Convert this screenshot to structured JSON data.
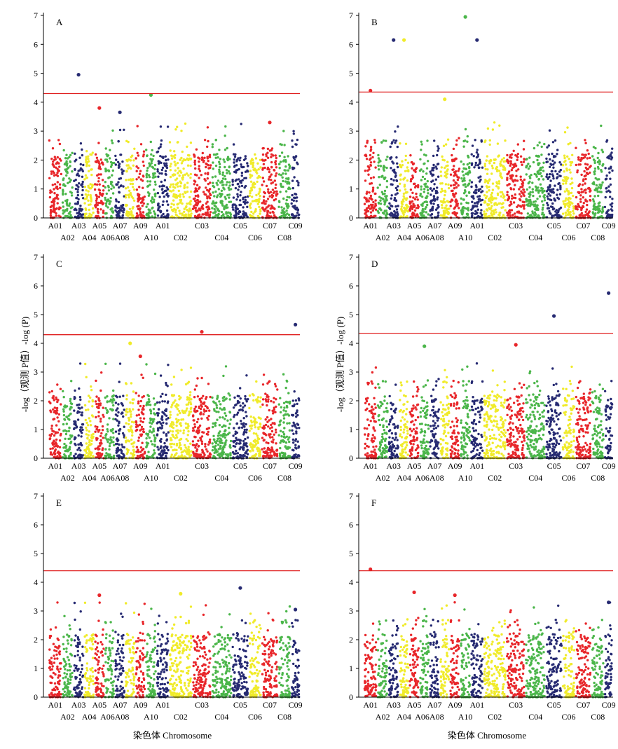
{
  "figure": {
    "y_axis_label": "-log（观测 P值）-log (P)",
    "x_axis_label": "染色体 Chromosome",
    "palette": [
      "#e8262a",
      "#4bb64a",
      "#262a72",
      "#f0eb2a"
    ]
  },
  "chart_data": [
    {
      "type": "scatter",
      "panel": "A",
      "ylim": [
        0,
        7
      ],
      "yticks": [
        0,
        1,
        2,
        3,
        4,
        5,
        6,
        7
      ],
      "threshold": 4.3,
      "chromosomes": [
        "A01",
        "A02",
        "A03",
        "A04",
        "A05",
        "A06",
        "A07",
        "A08",
        "A09",
        "A10",
        "A01",
        "C02",
        "C03",
        "C04",
        "C05",
        "C06",
        "C07",
        "C08",
        "C09"
      ],
      "top_labels": [
        "A01",
        "A03",
        "A05",
        "A07",
        "A09",
        "A01",
        "C03",
        "C05",
        "C07",
        "C09"
      ],
      "bottom_labels": [
        "A02",
        "A04",
        "A06A08",
        "A10",
        "C02",
        "C04",
        "C06",
        "C08"
      ],
      "peaks": [
        {
          "chromosome": "A03",
          "value": 4.95
        },
        {
          "chromosome": "A10",
          "value": 4.25
        },
        {
          "chromosome": "A05",
          "value": 3.8
        },
        {
          "chromosome": "A07",
          "value": 3.65
        },
        {
          "chromosome": "C07",
          "value": 3.3
        }
      ]
    },
    {
      "type": "scatter",
      "panel": "B",
      "ylim": [
        0,
        7
      ],
      "yticks": [
        0,
        1,
        2,
        3,
        4,
        5,
        6,
        7
      ],
      "threshold": 4.35,
      "chromosomes": [
        "A01",
        "A02",
        "A03",
        "A04",
        "A05",
        "A06",
        "A07",
        "A08",
        "A09",
        "A10",
        "A01",
        "C02",
        "C03",
        "C04",
        "C05",
        "C06",
        "C07",
        "C08",
        "C09"
      ],
      "top_labels": [
        "A01",
        "A03",
        "A05",
        "A07",
        "A09",
        "A01",
        "C03",
        "C05",
        "C07",
        "C09"
      ],
      "bottom_labels": [
        "A02",
        "A04",
        "A06A08",
        "A10",
        "C02",
        "C04",
        "C06",
        "C08"
      ],
      "peaks": [
        {
          "chromosome": "A10",
          "value": 6.95
        },
        {
          "chromosome": "A03",
          "value": 6.15
        },
        {
          "chromosome": "A04",
          "value": 6.15
        },
        {
          "chromosome": "A01",
          "value": 6.15
        },
        {
          "chromosome": "A01",
          "value": 4.4
        },
        {
          "chromosome": "A08",
          "value": 4.1
        }
      ]
    },
    {
      "type": "scatter",
      "panel": "C",
      "ylim": [
        0,
        7
      ],
      "yticks": [
        0,
        1,
        2,
        3,
        4,
        5,
        6,
        7
      ],
      "threshold": 4.3,
      "chromosomes": [
        "A01",
        "A02",
        "A03",
        "A04",
        "A05",
        "A06",
        "A07",
        "A08",
        "A09",
        "A10",
        "A01",
        "C02",
        "C03",
        "C04",
        "C05",
        "C06",
        "C07",
        "C08",
        "C09"
      ],
      "top_labels": [
        "A01",
        "A03",
        "A05",
        "A07",
        "A09",
        "A01",
        "C03",
        "C05",
        "C07",
        "C09"
      ],
      "bottom_labels": [
        "A02",
        "A04",
        "A06A08",
        "A10",
        "C02",
        "C04",
        "C06",
        "C08"
      ],
      "peaks": [
        {
          "chromosome": "C09",
          "value": 4.65
        },
        {
          "chromosome": "C03",
          "value": 4.4
        },
        {
          "chromosome": "A08",
          "value": 4.0
        },
        {
          "chromosome": "A09",
          "value": 3.55
        }
      ]
    },
    {
      "type": "scatter",
      "panel": "D",
      "ylim": [
        0,
        7
      ],
      "yticks": [
        0,
        1,
        2,
        3,
        4,
        5,
        6,
        7
      ],
      "threshold": 4.35,
      "chromosomes": [
        "A01",
        "A02",
        "A03",
        "A04",
        "A05",
        "A06",
        "A07",
        "A08",
        "A09",
        "A10",
        "A01",
        "C02",
        "C03",
        "C04",
        "C05",
        "C06",
        "C07",
        "C08",
        "C09"
      ],
      "top_labels": [
        "A01",
        "A03",
        "A05",
        "A07",
        "A09",
        "A01",
        "C03",
        "C05",
        "C07",
        "C09"
      ],
      "bottom_labels": [
        "A02",
        "A04",
        "A06A08",
        "A10",
        "C02",
        "C04",
        "C06",
        "C08"
      ],
      "peaks": [
        {
          "chromosome": "C09",
          "value": 5.75
        },
        {
          "chromosome": "C05",
          "value": 4.95
        },
        {
          "chromosome": "C03",
          "value": 3.95
        },
        {
          "chromosome": "A06",
          "value": 3.9
        }
      ]
    },
    {
      "type": "scatter",
      "panel": "E",
      "ylim": [
        0,
        7
      ],
      "yticks": [
        0,
        1,
        2,
        3,
        4,
        5,
        6,
        7
      ],
      "threshold": 4.4,
      "chromosomes": [
        "A01",
        "A02",
        "A03",
        "A04",
        "A05",
        "A06",
        "A07",
        "A08",
        "A09",
        "A10",
        "A01",
        "C02",
        "C03",
        "C04",
        "C05",
        "C06",
        "C07",
        "C08",
        "C09"
      ],
      "top_labels": [
        "A01",
        "A03",
        "A05",
        "A07",
        "A09",
        "A01",
        "C03",
        "C05",
        "C07",
        "C09"
      ],
      "bottom_labels": [
        "A02",
        "A04",
        "A06A08",
        "A10",
        "C02",
        "C04",
        "C06",
        "C08"
      ],
      "peaks": [
        {
          "chromosome": "C05",
          "value": 3.8
        },
        {
          "chromosome": "C02",
          "value": 3.6
        },
        {
          "chromosome": "A05",
          "value": 3.55
        },
        {
          "chromosome": "C09",
          "value": 3.05
        }
      ]
    },
    {
      "type": "scatter",
      "panel": "F",
      "ylim": [
        0,
        7
      ],
      "yticks": [
        0,
        1,
        2,
        3,
        4,
        5,
        6,
        7
      ],
      "threshold": 4.4,
      "chromosomes": [
        "A01",
        "A02",
        "A03",
        "A04",
        "A05",
        "A06",
        "A07",
        "A08",
        "A09",
        "A10",
        "A01",
        "C02",
        "C03",
        "C04",
        "C05",
        "C06",
        "C07",
        "C08",
        "C09"
      ],
      "top_labels": [
        "A01",
        "A03",
        "A05",
        "A07",
        "A09",
        "A01",
        "C03",
        "C05",
        "C07",
        "C09"
      ],
      "bottom_labels": [
        "A02",
        "A04",
        "A06A08",
        "A10",
        "C02",
        "C04",
        "C06",
        "C08"
      ],
      "peaks": [
        {
          "chromosome": "A01",
          "value": 4.45
        },
        {
          "chromosome": "A05",
          "value": 3.65
        },
        {
          "chromosome": "A09",
          "value": 3.55
        },
        {
          "chromosome": "C09",
          "value": 3.3
        }
      ]
    }
  ]
}
